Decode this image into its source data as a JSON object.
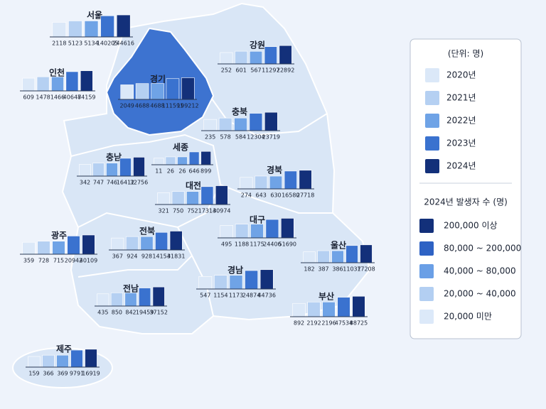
{
  "map": {
    "unit_label": "(단위: 명)",
    "years": [
      {
        "label": "2020년",
        "color": "#dbe8f8"
      },
      {
        "label": "2021년",
        "color": "#b5d0f2"
      },
      {
        "label": "2022년",
        "color": "#6fa3e6"
      },
      {
        "label": "2023년",
        "color": "#3a72cf"
      },
      {
        "label": "2024년",
        "color": "#13307a"
      }
    ],
    "class_title": "2024년 발생자 수 (명)",
    "classes": [
      {
        "label": "200,000 이상",
        "color": "#13307a"
      },
      {
        "label": "80,000 ~ 200,000",
        "color": "#2e62c4"
      },
      {
        "label": "40,000 ~ 80,000",
        "color": "#6a9fe6"
      },
      {
        "label": "20,000 ~ 40,000",
        "color": "#b3cff2"
      },
      {
        "label": "20,000 미만",
        "color": "#dce9f9"
      }
    ],
    "bar_scale": "log",
    "regions": [
      {
        "name": "서울",
        "values": [
          2118,
          5123,
          5134,
          140205,
          244616
        ]
      },
      {
        "name": "강원",
        "values": [
          252,
          601,
          567,
          11297,
          22892
        ]
      },
      {
        "name": "인천",
        "values": [
          609,
          1478,
          1466,
          40648,
          74159
        ]
      },
      {
        "name": "경기",
        "values": [
          2049,
          4688,
          4688,
          111591,
          199212
        ]
      },
      {
        "name": "충북",
        "values": [
          235,
          578,
          584,
          12304,
          23719
        ]
      },
      {
        "name": "세종",
        "values": [
          11,
          26,
          26,
          646,
          899
        ]
      },
      {
        "name": "충남",
        "values": [
          342,
          747,
          746,
          16412,
          32756
        ]
      },
      {
        "name": "경북",
        "values": [
          274,
          643,
          630,
          16580,
          27718
        ]
      },
      {
        "name": "대전",
        "values": [
          321,
          750,
          752,
          17314,
          30974
        ]
      },
      {
        "name": "대구",
        "values": [
          495,
          1188,
          1175,
          24406,
          51690
        ]
      },
      {
        "name": "전북",
        "values": [
          367,
          924,
          928,
          14154,
          31831
        ]
      },
      {
        "name": "광주",
        "values": [
          359,
          728,
          715,
          20942,
          40109
        ]
      },
      {
        "name": "울산",
        "values": [
          182,
          387,
          386,
          11037,
          17208
        ]
      },
      {
        "name": "경남",
        "values": [
          547,
          1154,
          1173,
          24874,
          44736
        ]
      },
      {
        "name": "전남",
        "values": [
          435,
          850,
          842,
          19459,
          37152
        ]
      },
      {
        "name": "부산",
        "values": [
          892,
          2192,
          2196,
          47534,
          88725
        ]
      },
      {
        "name": "제주",
        "values": [
          159,
          366,
          369,
          9791,
          16919
        ]
      }
    ]
  }
}
